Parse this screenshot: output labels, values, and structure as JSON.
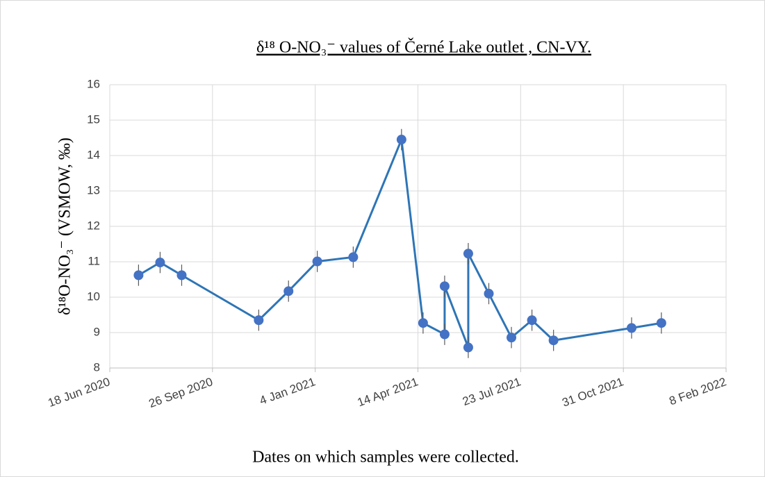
{
  "chart_data": {
    "type": "line",
    "title": "δ¹⁸ O-NO₃⁻ values of  Černé Lake outlet , CN-VY.",
    "x_label": "Dates on which samples were collected.",
    "y_label": "δ¹⁸O-NO₃⁻ (VSMOW, ‰)",
    "x": [
      "2020-07-16",
      "2020-08-06",
      "2020-08-27",
      "2020-11-10",
      "2020-12-09",
      "2021-01-06",
      "2021-02-10",
      "2021-03-29",
      "2021-04-19",
      "2021-05-10",
      "2021-05-10",
      "2021-06-02",
      "2021-06-02",
      "2021-06-22",
      "2021-07-14",
      "2021-08-03",
      "2021-08-24",
      "2021-11-08",
      "2021-12-07"
    ],
    "values": [
      10.62,
      10.98,
      10.62,
      9.35,
      10.17,
      11.01,
      11.13,
      14.45,
      9.27,
      8.95,
      10.31,
      8.58,
      11.23,
      10.1,
      8.86,
      9.35,
      8.78,
      9.13,
      9.27
    ],
    "errors": [
      0.3,
      0.3,
      0.3,
      0.3,
      0.3,
      0.3,
      0.3,
      0.3,
      0.3,
      0.3,
      0.3,
      0.3,
      0.3,
      0.3,
      0.3,
      0.3,
      0.3,
      0.3,
      0.3
    ],
    "color": "#2e75b6",
    "marker_color": "#4472c4",
    "xlim": [
      "2020-06-18",
      "2022-02-08"
    ],
    "xticks": [
      {
        "value": "2020-06-18",
        "label": "18 Jun 2020"
      },
      {
        "value": "2020-09-26",
        "label": "26 Sep 2020"
      },
      {
        "value": "2021-01-04",
        "label": "4 Jan 2021"
      },
      {
        "value": "2021-04-14",
        "label": "14 Apr 2021"
      },
      {
        "value": "2021-07-23",
        "label": "23 Jul 2021"
      },
      {
        "value": "2021-10-31",
        "label": "31 Oct 2021"
      },
      {
        "value": "2022-02-08",
        "label": "8 Feb 2022"
      }
    ],
    "ylim": [
      8,
      16
    ],
    "yticks": [
      8,
      9,
      10,
      11,
      12,
      13,
      14,
      15,
      16
    ],
    "grid": true
  }
}
